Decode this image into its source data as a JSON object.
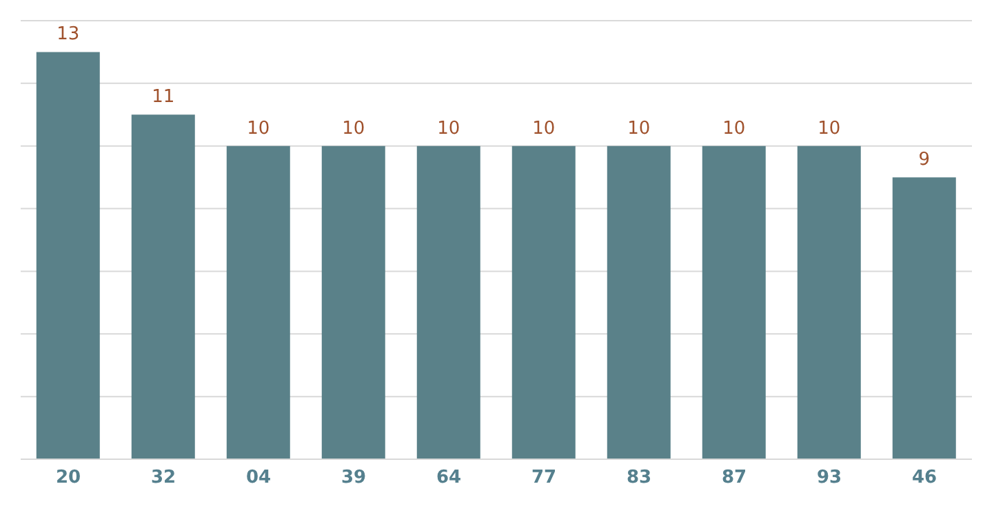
{
  "chart_data": {
    "type": "bar",
    "categories": [
      "20",
      "32",
      "04",
      "39",
      "64",
      "77",
      "83",
      "87",
      "93",
      "46"
    ],
    "values": [
      13,
      11,
      10,
      10,
      10,
      10,
      10,
      10,
      10,
      9
    ],
    "color": "#5a8189",
    "ylim": [
      0,
      14
    ],
    "yticks": [
      {
        "value": 0,
        "label": null
      },
      {
        "value": 2,
        "label": null
      },
      {
        "value": 4,
        "label": null
      },
      {
        "value": 6,
        "label": null
      },
      {
        "value": 8,
        "label": null
      },
      {
        "value": 10,
        "label": null
      },
      {
        "value": 12,
        "label": null
      },
      {
        "value": 14,
        "label": null
      }
    ],
    "grid": "y",
    "tick_labels": "x",
    "data_labels": true
  }
}
